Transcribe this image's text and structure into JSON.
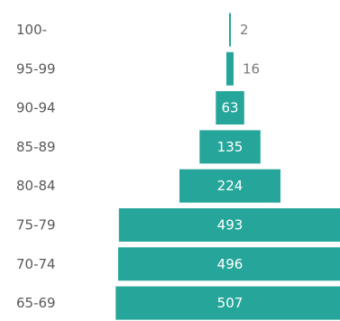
{
  "chart_data": {
    "type": "bar",
    "orientation": "horizontal",
    "centered": true,
    "categories": [
      "100-",
      "95-99",
      "90-94",
      "85-89",
      "80-84",
      "75-79",
      "70-74",
      "65-69"
    ],
    "values": [
      2,
      16,
      63,
      135,
      224,
      493,
      496,
      507
    ],
    "title": "",
    "xlabel": "",
    "ylabel": "",
    "grid": false,
    "legend": "none",
    "bar_color": "#26a69a"
  }
}
